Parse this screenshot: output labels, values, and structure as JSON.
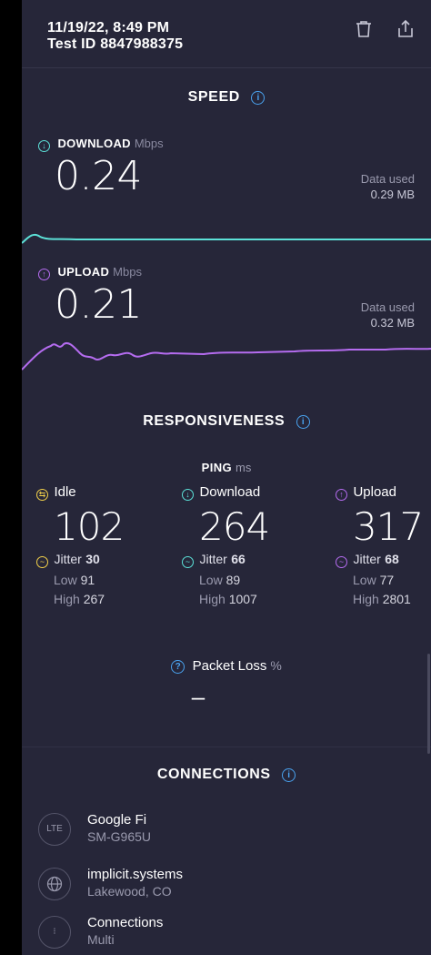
{
  "header": {
    "date_time": "11/19/22, 8:49 PM",
    "test_id": "Test ID 8847988375",
    "delete_icon": "trash-icon",
    "share_icon": "share-icon"
  },
  "speed": {
    "title": "SPEED",
    "download": {
      "label": "DOWNLOAD",
      "unit": "Mbps",
      "value": "0.24",
      "data_used_label": "Data used",
      "data_used_value": "0.29 MB",
      "color": "#5ce1d8"
    },
    "upload": {
      "label": "UPLOAD",
      "unit": "Mbps",
      "value": "0.21",
      "data_used_label": "Data used",
      "data_used_value": "0.32 MB",
      "color": "#b56cf0"
    }
  },
  "responsiveness": {
    "title": "RESPONSIVENESS",
    "ping_label": "PING",
    "ping_unit": "ms",
    "columns": [
      {
        "label": "Idle",
        "value": "102",
        "jitter_label": "Jitter",
        "jitter": "30",
        "low_label": "Low",
        "low": "91",
        "high_label": "High",
        "high": "267",
        "color": "#f2d04a"
      },
      {
        "label": "Download",
        "value": "264",
        "jitter_label": "Jitter",
        "jitter": "66",
        "low_label": "Low",
        "low": "89",
        "high_label": "High",
        "high": "1007",
        "color": "#5ce1d8"
      },
      {
        "label": "Upload",
        "value": "317",
        "jitter_label": "Jitter",
        "jitter": "68",
        "low_label": "Low",
        "low": "77",
        "high_label": "High",
        "high": "2801",
        "color": "#b56cf0"
      }
    ],
    "packet_loss_label": "Packet Loss",
    "packet_loss_unit": "%",
    "packet_loss_value": "–"
  },
  "connections": {
    "title": "CONNECTIONS",
    "items": [
      {
        "icon": "LTE",
        "title": "Google Fi",
        "subtitle": "SM-G965U"
      },
      {
        "icon": "globe-icon",
        "title": "implicit.systems",
        "subtitle": "Lakewood, CO"
      },
      {
        "icon": "connections-icon",
        "title": "Connections",
        "subtitle": "Multi"
      }
    ]
  },
  "colors": {
    "background": "#262639",
    "accent_info": "#4aa3f0"
  }
}
